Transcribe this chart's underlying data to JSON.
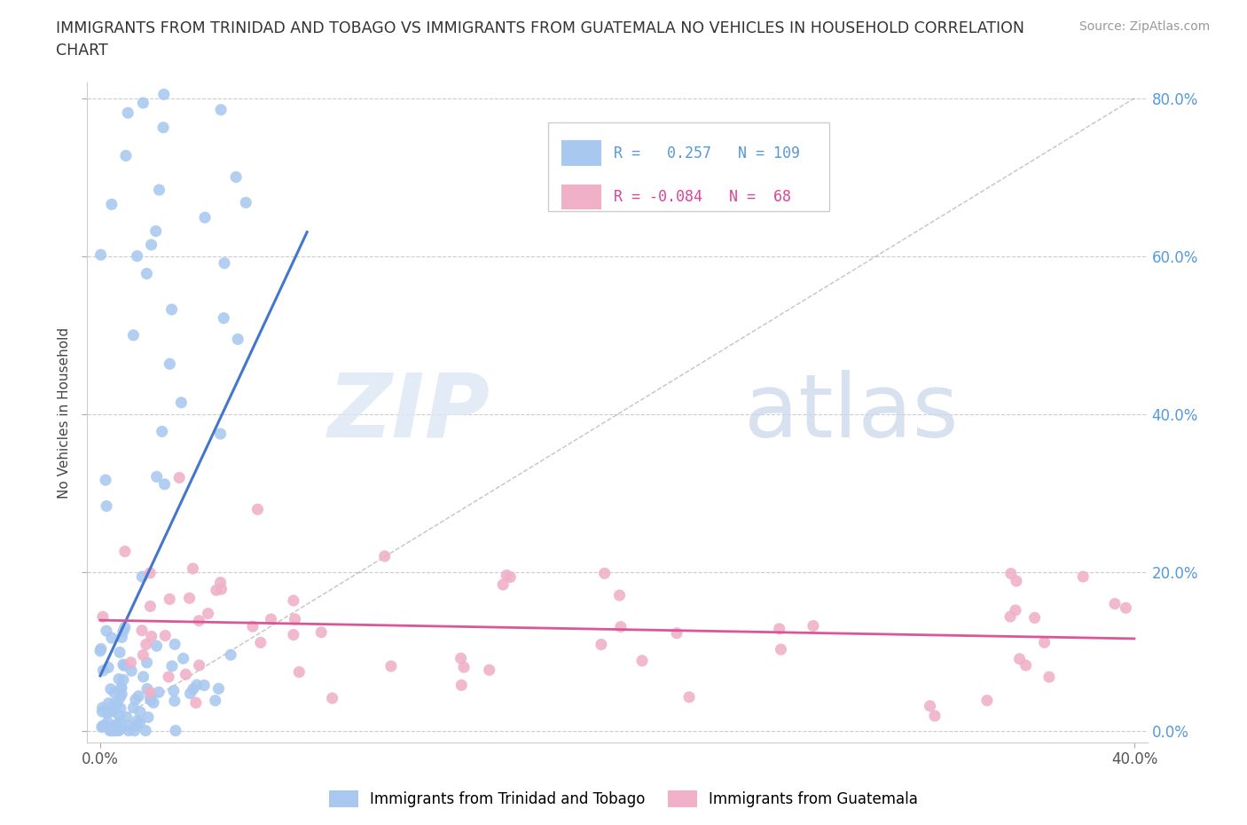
{
  "title_line1": "IMMIGRANTS FROM TRINIDAD AND TOBAGO VS IMMIGRANTS FROM GUATEMALA NO VEHICLES IN HOUSEHOLD CORRELATION",
  "title_line2": "CHART",
  "source": "Source: ZipAtlas.com",
  "ylabel": "No Vehicles in Household",
  "legend_label1": "Immigrants from Trinidad and Tobago",
  "legend_label2": "Immigrants from Guatemala",
  "R1": 0.257,
  "N1": 109,
  "R2": -0.084,
  "N2": 68,
  "color1": "#a8c8f0",
  "color2": "#f0b0c8",
  "line_color1": "#4477cc",
  "line_color2": "#dd5599",
  "right_tick_color": "#5599dd",
  "watermark_zip": "ZIP",
  "watermark_atlas": "atlas",
  "xlim": [
    0.0,
    0.4
  ],
  "ylim": [
    0.0,
    0.8
  ],
  "x_ticks": [
    0.0,
    0.4
  ],
  "x_labels": [
    "0.0%",
    "40.0%"
  ],
  "y_ticks": [
    0.0,
    0.2,
    0.4,
    0.6,
    0.8
  ],
  "y_labels": [
    "0.0%",
    "20.0%",
    "40.0%",
    "60.0%",
    "80.0%"
  ],
  "grid_color": "#cccccc",
  "grid_style": "--",
  "diag_color": "#aaaaaa"
}
